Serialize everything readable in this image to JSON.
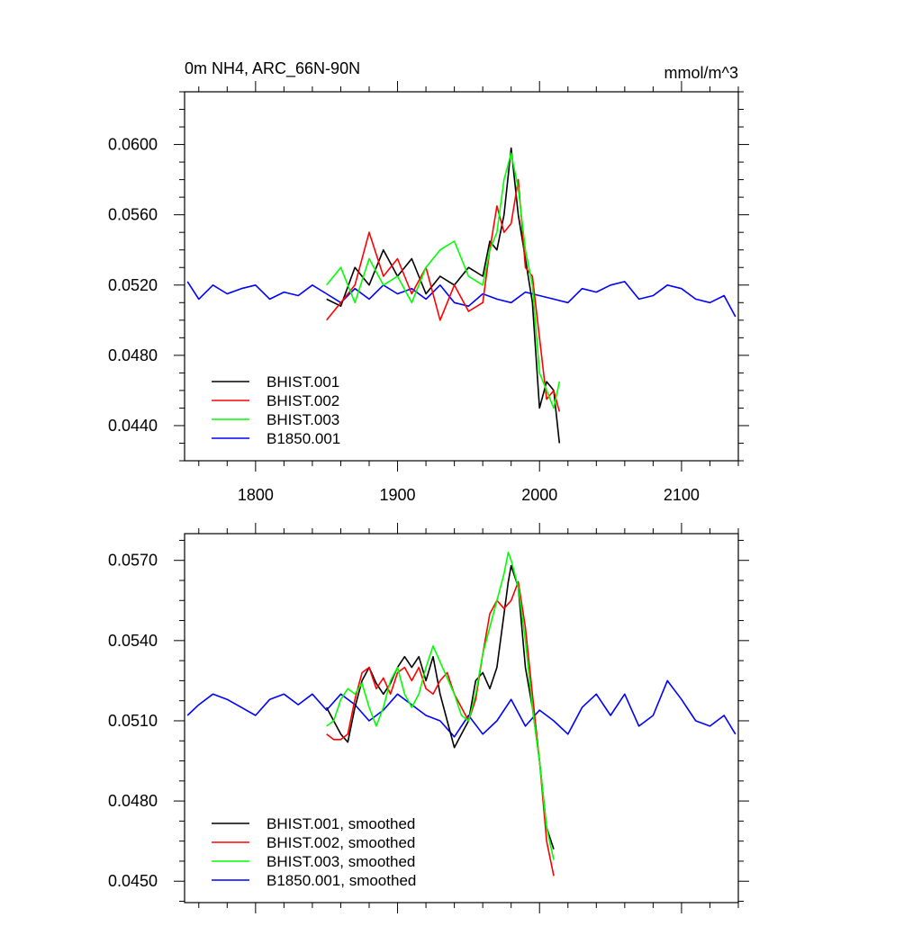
{
  "chart_data": [
    {
      "type": "line",
      "title": "0m NH4, ARC_66N-90N",
      "units": "mmol/m^3",
      "xlim": [
        1750,
        2140
      ],
      "ylim": [
        0.042,
        0.063
      ],
      "x_ticks": [
        1800,
        1900,
        2000,
        2100
      ],
      "x_tick_labels": [
        "1800",
        "1900",
        "2000",
        "2100"
      ],
      "y_ticks": [
        0.044,
        0.048,
        0.052,
        0.056,
        0.06
      ],
      "y_tick_labels": [
        "0.0440",
        "0.0480",
        "0.0520",
        "0.0560",
        "0.0600"
      ],
      "legend_position": "bottom-left",
      "grid": false,
      "series": [
        {
          "name": "BHIST.001",
          "color": "#000000",
          "x": [
            1850,
            1860,
            1870,
            1880,
            1890,
            1900,
            1910,
            1920,
            1930,
            1940,
            1950,
            1960,
            1965,
            1970,
            1975,
            1980,
            1985,
            1990,
            1995,
            2000,
            2005,
            2010,
            2014
          ],
          "y": [
            0.0512,
            0.0508,
            0.053,
            0.052,
            0.054,
            0.0525,
            0.0535,
            0.0515,
            0.0525,
            0.052,
            0.053,
            0.0525,
            0.0545,
            0.054,
            0.056,
            0.0598,
            0.056,
            0.0535,
            0.051,
            0.045,
            0.0465,
            0.046,
            0.043
          ]
        },
        {
          "name": "BHIST.002",
          "color": "#ff0000",
          "x": [
            1850,
            1860,
            1870,
            1880,
            1890,
            1900,
            1910,
            1920,
            1930,
            1940,
            1950,
            1960,
            1965,
            1970,
            1975,
            1980,
            1985,
            1990,
            1995,
            2000,
            2005,
            2010,
            2014
          ],
          "y": [
            0.05,
            0.051,
            0.052,
            0.055,
            0.0525,
            0.0535,
            0.0515,
            0.053,
            0.05,
            0.052,
            0.0505,
            0.051,
            0.054,
            0.0565,
            0.055,
            0.0555,
            0.058,
            0.053,
            0.0525,
            0.049,
            0.0455,
            0.046,
            0.0448
          ]
        },
        {
          "name": "BHIST.003",
          "color": "#00ff00",
          "x": [
            1850,
            1860,
            1870,
            1880,
            1890,
            1900,
            1910,
            1920,
            1930,
            1940,
            1950,
            1960,
            1965,
            1970,
            1975,
            1980,
            1985,
            1990,
            1995,
            2000,
            2005,
            2010,
            2014
          ],
          "y": [
            0.052,
            0.053,
            0.051,
            0.0535,
            0.052,
            0.0525,
            0.051,
            0.053,
            0.054,
            0.0545,
            0.0525,
            0.052,
            0.054,
            0.055,
            0.058,
            0.0595,
            0.0575,
            0.054,
            0.052,
            0.047,
            0.046,
            0.045,
            0.0465
          ]
        },
        {
          "name": "B1850.001",
          "color": "#0000ff",
          "x": [
            1752,
            1760,
            1770,
            1780,
            1790,
            1800,
            1810,
            1820,
            1830,
            1840,
            1850,
            1860,
            1870,
            1880,
            1890,
            1900,
            1910,
            1920,
            1930,
            1940,
            1950,
            1960,
            1970,
            1980,
            1990,
            2000,
            2010,
            2020,
            2030,
            2040,
            2050,
            2060,
            2070,
            2080,
            2090,
            2100,
            2110,
            2120,
            2130,
            2138
          ],
          "y": [
            0.0522,
            0.0512,
            0.052,
            0.0515,
            0.0518,
            0.052,
            0.0512,
            0.0516,
            0.0514,
            0.052,
            0.0515,
            0.051,
            0.0518,
            0.0512,
            0.052,
            0.0515,
            0.0518,
            0.0512,
            0.052,
            0.051,
            0.0508,
            0.0515,
            0.0512,
            0.051,
            0.0516,
            0.0514,
            0.0512,
            0.051,
            0.0518,
            0.0516,
            0.052,
            0.0522,
            0.0512,
            0.0514,
            0.052,
            0.0518,
            0.0512,
            0.051,
            0.0514,
            0.0502
          ]
        }
      ]
    },
    {
      "type": "line",
      "xlim": [
        1750,
        2140
      ],
      "ylim": [
        0.0442,
        0.058
      ],
      "y_ticks": [
        0.045,
        0.048,
        0.051,
        0.054,
        0.057
      ],
      "y_tick_labels": [
        "0.0450",
        "0.0480",
        "0.0510",
        "0.0540",
        "0.0570"
      ],
      "legend_position": "bottom-left",
      "grid": false,
      "series": [
        {
          "name": "BHIST.001, smoothed",
          "color": "#000000",
          "x": [
            1850,
            1855,
            1860,
            1865,
            1870,
            1875,
            1880,
            1885,
            1890,
            1895,
            1900,
            1905,
            1910,
            1915,
            1920,
            1925,
            1930,
            1935,
            1940,
            1945,
            1950,
            1955,
            1960,
            1965,
            1970,
            1975,
            1978,
            1980,
            1985,
            1990,
            1995,
            2000,
            2005,
            2010
          ],
          "y": [
            0.0515,
            0.051,
            0.0505,
            0.0502,
            0.0515,
            0.0525,
            0.053,
            0.0524,
            0.052,
            0.0524,
            0.053,
            0.0534,
            0.053,
            0.0534,
            0.0525,
            0.0534,
            0.052,
            0.051,
            0.05,
            0.0505,
            0.051,
            0.0525,
            0.0528,
            0.0522,
            0.053,
            0.055,
            0.0562,
            0.0568,
            0.056,
            0.053,
            0.0515,
            0.0495,
            0.047,
            0.0462
          ]
        },
        {
          "name": "BHIST.002, smoothed",
          "color": "#ff0000",
          "x": [
            1850,
            1855,
            1860,
            1865,
            1870,
            1875,
            1880,
            1885,
            1890,
            1895,
            1900,
            1905,
            1910,
            1915,
            1920,
            1925,
            1930,
            1935,
            1940,
            1945,
            1950,
            1955,
            1960,
            1965,
            1970,
            1975,
            1980,
            1985,
            1990,
            1995,
            2000,
            2005,
            2010
          ],
          "y": [
            0.0505,
            0.0503,
            0.0503,
            0.0505,
            0.0518,
            0.0528,
            0.053,
            0.0522,
            0.0526,
            0.052,
            0.0528,
            0.053,
            0.0525,
            0.053,
            0.0522,
            0.052,
            0.0525,
            0.0528,
            0.052,
            0.0515,
            0.051,
            0.0518,
            0.0535,
            0.055,
            0.0555,
            0.0552,
            0.0555,
            0.0562,
            0.0545,
            0.052,
            0.0495,
            0.0465,
            0.0452
          ]
        },
        {
          "name": "BHIST.003, smoothed",
          "color": "#00ff00",
          "x": [
            1850,
            1855,
            1860,
            1865,
            1870,
            1875,
            1880,
            1885,
            1890,
            1895,
            1900,
            1905,
            1910,
            1915,
            1920,
            1925,
            1930,
            1935,
            1940,
            1945,
            1950,
            1955,
            1960,
            1965,
            1970,
            1975,
            1978,
            1980,
            1985,
            1990,
            1995,
            2000,
            2005,
            2010
          ],
          "y": [
            0.0508,
            0.051,
            0.0518,
            0.0522,
            0.052,
            0.0524,
            0.0515,
            0.0508,
            0.0515,
            0.0525,
            0.053,
            0.052,
            0.0515,
            0.052,
            0.053,
            0.0538,
            0.0532,
            0.0526,
            0.052,
            0.0512,
            0.051,
            0.052,
            0.0535,
            0.0545,
            0.0555,
            0.0565,
            0.0573,
            0.057,
            0.056,
            0.054,
            0.0515,
            0.0495,
            0.047,
            0.0458
          ]
        },
        {
          "name": "B1850.001, smoothed",
          "color": "#0000ff",
          "x": [
            1752,
            1760,
            1770,
            1780,
            1790,
            1800,
            1810,
            1820,
            1830,
            1840,
            1850,
            1860,
            1870,
            1880,
            1890,
            1900,
            1910,
            1920,
            1930,
            1940,
            1950,
            1960,
            1970,
            1980,
            1990,
            2000,
            2010,
            2020,
            2030,
            2040,
            2050,
            2060,
            2070,
            2080,
            2090,
            2100,
            2110,
            2120,
            2130,
            2138
          ],
          "y": [
            0.0512,
            0.0516,
            0.052,
            0.0518,
            0.0515,
            0.0512,
            0.0518,
            0.052,
            0.0516,
            0.052,
            0.0514,
            0.052,
            0.0516,
            0.051,
            0.0514,
            0.052,
            0.0516,
            0.0512,
            0.051,
            0.0504,
            0.0512,
            0.0505,
            0.051,
            0.0518,
            0.0508,
            0.0514,
            0.051,
            0.0505,
            0.0515,
            0.052,
            0.0512,
            0.052,
            0.0508,
            0.0512,
            0.0525,
            0.0518,
            0.051,
            0.0508,
            0.0512,
            0.0505
          ]
        }
      ]
    }
  ]
}
